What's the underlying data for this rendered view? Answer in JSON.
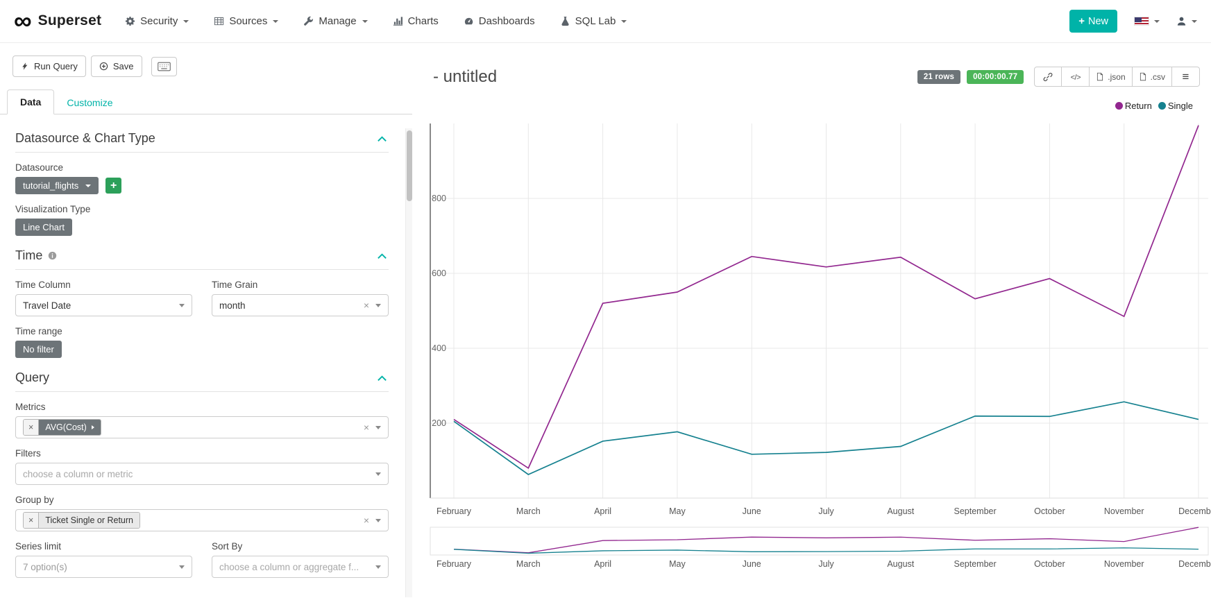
{
  "colors": {
    "accent": "#00b3a8",
    "badge_green": "#4bb558",
    "token_gray": "#6d7478"
  },
  "navbar": {
    "brand": "Superset",
    "items": [
      {
        "label": "Security"
      },
      {
        "label": "Sources"
      },
      {
        "label": "Manage"
      },
      {
        "label": "Charts"
      },
      {
        "label": "Dashboards"
      },
      {
        "label": "SQL Lab"
      }
    ],
    "new_label": "New"
  },
  "controls": {
    "run_query_label": "Run Query",
    "save_label": "Save",
    "tabs": {
      "data": "Data",
      "customize": "Customize"
    }
  },
  "sections": {
    "datasource": {
      "title": "Datasource & Chart Type",
      "datasource_label": "Datasource",
      "datasource_value": "tutorial_flights",
      "viz_type_label": "Visualization Type",
      "viz_type_value": "Line Chart"
    },
    "time": {
      "title": "Time",
      "time_column_label": "Time Column",
      "time_column_value": "Travel Date",
      "time_grain_label": "Time Grain",
      "time_grain_value": "month",
      "time_range_label": "Time range",
      "time_range_value": "No filter"
    },
    "query": {
      "title": "Query",
      "metrics_label": "Metrics",
      "metric_chip": "AVG(Cost)",
      "filters_label": "Filters",
      "filters_placeholder": "choose a column or metric",
      "groupby_label": "Group by",
      "groupby_chip": "Ticket Single or Return",
      "series_limit_label": "Series limit",
      "series_limit_value": "7 option(s)",
      "sort_by_label": "Sort By",
      "sort_by_placeholder": "choose a column or aggregate f..."
    }
  },
  "chart": {
    "title": "- untitled",
    "rows_badge": "21 rows",
    "duration_badge": "00:00:00.77",
    "btn_json": ".json",
    "btn_csv": ".csv"
  },
  "chart_data": {
    "type": "line",
    "title": "- untitled",
    "x": [
      "February",
      "March",
      "April",
      "May",
      "June",
      "July",
      "August",
      "September",
      "October",
      "November",
      "December"
    ],
    "series": [
      {
        "name": "Return",
        "color": "#92278f",
        "values": [
          210,
          80,
          520,
          550,
          645,
          617,
          643,
          532,
          586,
          485,
          995
        ]
      },
      {
        "name": "Single",
        "color": "#15818f",
        "values": [
          205,
          63,
          152,
          177,
          117,
          122,
          138,
          219,
          218,
          257,
          210
        ]
      }
    ],
    "ylim": [
      0,
      1000
    ],
    "yticks": [
      200,
      400,
      600,
      800
    ],
    "grid": true,
    "legend_position": "top-right",
    "xlabel": "",
    "ylabel": ""
  }
}
